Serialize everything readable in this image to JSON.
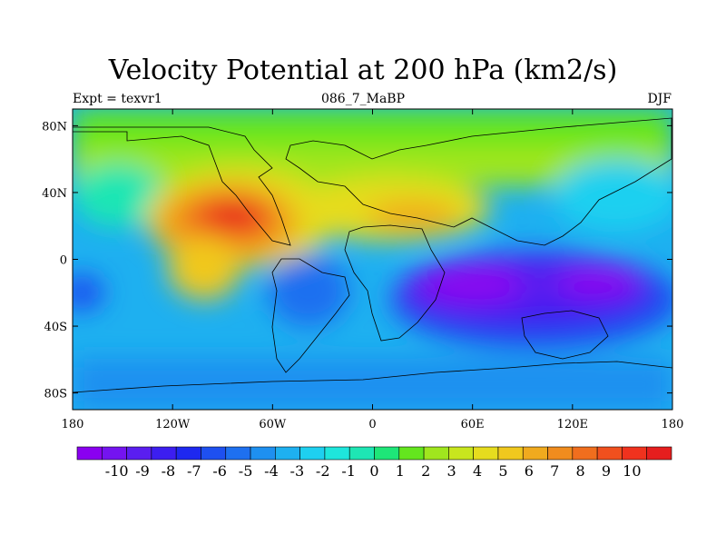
{
  "title": "Velocity Potential at 200 hPa (km2/s)",
  "left_label": "Expt = texvr1",
  "center_label": "086_7_MaBP",
  "right_label": "DJF",
  "x_ticks": [
    "180",
    "120W",
    "60W",
    "0",
    "60E",
    "120E",
    "180"
  ],
  "y_ticks": [
    "80N",
    "40N",
    "0",
    "40S",
    "80S"
  ],
  "colorbar": {
    "labels": [
      "-10",
      "-9",
      "-8",
      "-7",
      "-6",
      "-5",
      "-4",
      "-3",
      "-2",
      "-1",
      "0",
      "1",
      "2",
      "3",
      "4",
      "5",
      "6",
      "7",
      "8",
      "9",
      "10"
    ],
    "colors": [
      "#8a00f0",
      "#7414f0",
      "#5a1ef0",
      "#3c1ef0",
      "#1e28f0",
      "#1e50f0",
      "#1e70f0",
      "#1e90f0",
      "#1eb0f0",
      "#1ed0f0",
      "#1ee6dc",
      "#1ee6b4",
      "#1ee678",
      "#64e61e",
      "#a0e61e",
      "#c8e61e",
      "#e6dc1e",
      "#f0c81e",
      "#f0aa1e",
      "#f08c1e",
      "#f06e1e",
      "#f0501e",
      "#f0321e",
      "#e61e1e"
    ]
  },
  "chart_data": {
    "type": "heatmap",
    "title": "Velocity Potential at 200 hPa (km2/s)",
    "field": "velocity potential",
    "level": "200 hPa",
    "units": "km2/s",
    "season": "DJF",
    "experiment": "texvr1",
    "case": "086_7_MaBP",
    "xlim": [
      -180,
      180
    ],
    "ylim": [
      -90,
      90
    ],
    "contour_levels": [
      -10,
      10,
      1
    ],
    "centers": [
      {
        "lon": -85,
        "lat": 25,
        "value": 9.5,
        "label": "max"
      },
      {
        "lon": 25,
        "lat": 25,
        "value": 6.5,
        "label": "secondary max"
      },
      {
        "lon": 80,
        "lat": -10,
        "value": -9.5,
        "label": "min"
      },
      {
        "lon": 140,
        "lat": -10,
        "value": -9,
        "label": "min"
      },
      {
        "lon": -40,
        "lat": -15,
        "value": -4,
        "label": "local min"
      }
    ]
  }
}
